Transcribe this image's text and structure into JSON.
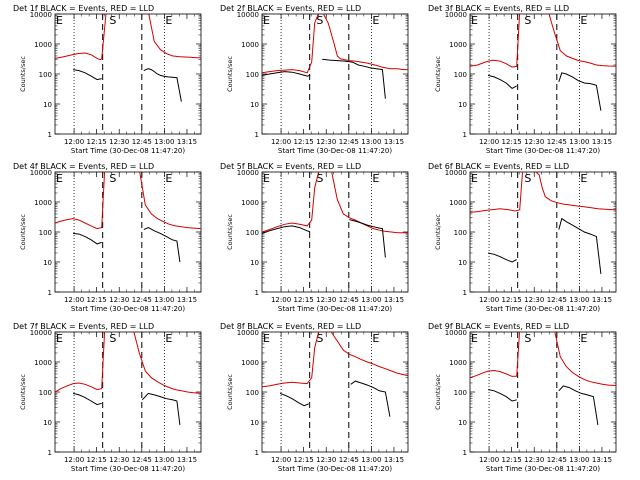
{
  "chart_data": {
    "type": "line",
    "y_scale": "log",
    "ylim": [
      1,
      10000
    ],
    "y_ticks": [
      1,
      10,
      100,
      1000,
      10000
    ],
    "y_tick_labels": [
      "1",
      "10",
      "100",
      "1000",
      "10000"
    ],
    "x_unit": "minutes after 11:47:20",
    "xlim": [
      0,
      97
    ],
    "x_ticks": [
      12.67,
      27.67,
      42.67,
      57.67,
      72.67,
      87.67
    ],
    "x_tick_labels": [
      "12:00",
      "12:15",
      "12:30",
      "12:45",
      "13:00",
      "13:15"
    ],
    "ylabel": "Counts/sec",
    "xlabel": "Start Time (30-Dec-08 11:47:20)",
    "grid": false,
    "dotted_lines_x": [
      12.67,
      72.67
    ],
    "dashed_lines_x": [
      31.67,
      57.67
    ],
    "markers": [
      {
        "label": "E",
        "x": 0
      },
      {
        "label": "S",
        "x": 35.5
      },
      {
        "label": "E",
        "x": 72.67
      }
    ],
    "series_colors": {
      "events": "#000000",
      "lld": "#d40000"
    },
    "panels": [
      {
        "title": "Det 1f BLACK = Events, RED = LLD",
        "lld": {
          "x": [
            0,
            5,
            10,
            15,
            20,
            24,
            28,
            30,
            31,
            34,
            38,
            42,
            46,
            50,
            54,
            58,
            62,
            66,
            70,
            74,
            78,
            82,
            86,
            90,
            94,
            97
          ],
          "y": [
            330,
            370,
            420,
            480,
            500,
            440,
            330,
            300,
            320,
            12000,
            12000,
            12000,
            12000,
            12000,
            12000,
            12000,
            12000,
            1200,
            650,
            480,
            400,
            380,
            370,
            360,
            350,
            350
          ]
        },
        "events": [
          {
            "x": [
              12,
              16,
              20,
              24,
              28,
              31
            ],
            "y": [
              140,
              130,
              110,
              85,
              65,
              70
            ]
          },
          {
            "x": [
              59,
              62,
              64,
              66,
              68,
              70,
              72,
              75,
              78,
              81,
              84
            ],
            "y": [
              130,
              150,
              140,
              120,
              100,
              90,
              85,
              80,
              78,
              75,
              12
            ]
          }
        ]
      },
      {
        "title": "Det 2f BLACK = Events, RED = LLD",
        "lld": {
          "x": [
            0,
            5,
            10,
            15,
            20,
            25,
            30,
            33,
            35,
            38,
            40,
            44,
            48,
            50,
            52,
            55,
            58,
            62,
            66,
            70,
            75,
            80,
            85,
            90,
            94,
            97
          ],
          "y": [
            110,
            120,
            130,
            135,
            140,
            130,
            110,
            250,
            5000,
            12000,
            12000,
            5000,
            1000,
            400,
            320,
            300,
            280,
            270,
            250,
            230,
            200,
            170,
            150,
            150,
            140,
            140
          ]
        },
        "events": [
          {
            "x": [
              0,
              5,
              10,
              15,
              20,
              25,
              30,
              32
            ],
            "y": [
              90,
              100,
              110,
              120,
              115,
              100,
              85,
              90
            ]
          },
          {
            "x": [
              40,
              45,
              50,
              55,
              60,
              64,
              68,
              72,
              76,
              80,
              82
            ],
            "y": [
              310,
              290,
              280,
              270,
              250,
              200,
              180,
              160,
              150,
              140,
              15
            ]
          }
        ]
      },
      {
        "title": "Det 3f BLACK = Events, RED = LLD",
        "lld": {
          "x": [
            0,
            5,
            10,
            15,
            20,
            24,
            28,
            31,
            33,
            36,
            40,
            44,
            48,
            52,
            56,
            60,
            64,
            68,
            72,
            76,
            80,
            84,
            88,
            92,
            97
          ],
          "y": [
            180,
            200,
            250,
            290,
            270,
            220,
            170,
            180,
            12000,
            12000,
            12000,
            12000,
            12000,
            12000,
            2500,
            600,
            400,
            330,
            280,
            260,
            230,
            200,
            190,
            185,
            180
          ]
        },
        "events": [
          {
            "x": [
              12,
              16,
              20,
              24,
              28,
              31
            ],
            "y": [
              90,
              80,
              65,
              50,
              33,
              40
            ]
          },
          {
            "x": [
              59,
              61,
              64,
              68,
              72,
              76,
              80,
              84,
              87
            ],
            "y": [
              55,
              110,
              100,
              80,
              60,
              50,
              48,
              42,
              6
            ]
          }
        ]
      },
      {
        "title": "Det 4f BLACK = Events, RED = LLD",
        "lld": {
          "x": [
            0,
            4,
            8,
            12,
            16,
            20,
            24,
            28,
            31,
            33,
            36,
            40,
            44,
            48,
            52,
            56,
            60,
            64,
            68,
            72,
            76,
            80,
            84,
            88,
            92,
            97
          ],
          "y": [
            200,
            230,
            260,
            280,
            250,
            200,
            160,
            130,
            140,
            12000,
            12000,
            12000,
            12000,
            12000,
            12000,
            12000,
            800,
            400,
            280,
            220,
            180,
            160,
            150,
            140,
            135,
            130
          ]
        },
        "events": [
          {
            "x": [
              12,
              16,
              20,
              24,
              28,
              31
            ],
            "y": [
              90,
              85,
              70,
              55,
              40,
              45
            ]
          },
          {
            "x": [
              59,
              62,
              66,
              70,
              74,
              78,
              81,
              83
            ],
            "y": [
              120,
              140,
              110,
              90,
              70,
              55,
              50,
              10
            ]
          }
        ]
      },
      {
        "title": "Det 5f BLACK = Events, RED = LLD",
        "lld": {
          "x": [
            0,
            5,
            10,
            15,
            20,
            25,
            30,
            33,
            35,
            38,
            42,
            46,
            50,
            54,
            58,
            62,
            66,
            70,
            74,
            78,
            82,
            86,
            90,
            94,
            97
          ],
          "y": [
            100,
            120,
            150,
            180,
            200,
            180,
            160,
            250,
            3000,
            12000,
            12000,
            12000,
            1200,
            400,
            300,
            250,
            200,
            160,
            130,
            115,
            105,
            100,
            95,
            95,
            95
          ]
        },
        "events": [
          {
            "x": [
              0,
              5,
              10,
              15,
              20,
              25,
              30,
              32
            ],
            "y": [
              90,
              110,
              130,
              150,
              160,
              140,
              110,
              100
            ]
          },
          {
            "x": [
              58,
              62,
              66,
              70,
              74,
              78,
              80,
              82
            ],
            "y": [
              260,
              230,
              200,
              170,
              150,
              135,
              130,
              14
            ]
          }
        ]
      },
      {
        "title": "Det 6f BLACK = Events, RED = LLD",
        "lld": {
          "x": [
            0,
            5,
            10,
            15,
            20,
            25,
            30,
            33,
            35,
            38,
            42,
            46,
            48,
            50,
            54,
            58,
            62,
            66,
            70,
            75,
            80,
            85,
            90,
            94,
            97
          ],
          "y": [
            450,
            480,
            520,
            560,
            600,
            560,
            500,
            550,
            12000,
            12000,
            12000,
            8000,
            3000,
            1500,
            1100,
            950,
            850,
            800,
            750,
            700,
            650,
            600,
            570,
            560,
            550
          ]
        },
        "events": [
          {
            "x": [
              12,
              16,
              20,
              24,
              28,
              31
            ],
            "y": [
              20,
              18,
              15,
              12,
              10,
              12
            ]
          },
          {
            "x": [
              59,
              61,
              64,
              68,
              72,
              76,
              80,
              84,
              87
            ],
            "y": [
              120,
              280,
              220,
              170,
              130,
              100,
              85,
              70,
              4
            ]
          }
        ]
      },
      {
        "title": "Det 7f BLACK = Events, RED = LLD",
        "lld": {
          "x": [
            0,
            4,
            8,
            12,
            16,
            20,
            24,
            28,
            31,
            33,
            36,
            40,
            44,
            48,
            52,
            56,
            60,
            64,
            68,
            72,
            76,
            80,
            84,
            88,
            92,
            97
          ],
          "y": [
            100,
            130,
            160,
            190,
            200,
            180,
            150,
            120,
            130,
            12000,
            12000,
            12000,
            12000,
            12000,
            12000,
            2000,
            500,
            300,
            220,
            170,
            140,
            120,
            110,
            100,
            95,
            90
          ]
        },
        "events": [
          {
            "x": [
              12,
              16,
              20,
              24,
              28,
              31
            ],
            "y": [
              90,
              80,
              65,
              50,
              38,
              42
            ]
          },
          {
            "x": [
              58,
              62,
              66,
              70,
              74,
              78,
              81,
              83
            ],
            "y": [
              55,
              90,
              80,
              70,
              60,
              55,
              50,
              8
            ]
          }
        ]
      },
      {
        "title": "Det 8f BLACK = Events, RED = LLD",
        "lld": {
          "x": [
            0,
            5,
            10,
            15,
            20,
            25,
            30,
            33,
            35,
            38,
            42,
            46,
            50,
            54,
            58,
            62,
            66,
            70,
            74,
            78,
            82,
            86,
            90,
            94,
            97
          ],
          "y": [
            150,
            160,
            180,
            200,
            210,
            200,
            190,
            300,
            3000,
            12000,
            12000,
            10000,
            5000,
            2500,
            1800,
            1500,
            1200,
            1000,
            850,
            700,
            600,
            500,
            420,
            380,
            350
          ]
        },
        "events": [
          {
            "x": [
              12,
              16,
              20,
              24,
              28,
              31
            ],
            "y": [
              90,
              75,
              60,
              45,
              35,
              40
            ]
          },
          {
            "x": [
              59,
              62,
              66,
              70,
              74,
              78,
              82,
              85
            ],
            "y": [
              180,
              230,
              200,
              170,
              140,
              110,
              100,
              15
            ]
          }
        ]
      },
      {
        "title": "Det 9f BLACK = Events, RED = LLD",
        "lld": {
          "x": [
            0,
            4,
            8,
            12,
            16,
            20,
            24,
            28,
            31,
            33,
            36,
            40,
            44,
            48,
            52,
            56,
            60,
            64,
            68,
            72,
            76,
            80,
            84,
            88,
            92,
            97
          ],
          "y": [
            300,
            350,
            420,
            500,
            520,
            480,
            400,
            330,
            340,
            12000,
            12000,
            12000,
            12000,
            12000,
            12000,
            12000,
            1500,
            700,
            450,
            330,
            260,
            220,
            200,
            180,
            170,
            165
          ]
        },
        "events": [
          {
            "x": [
              12,
              16,
              20,
              24,
              28,
              31
            ],
            "y": [
              120,
              110,
              90,
              70,
              50,
              55
            ]
          },
          {
            "x": [
              59,
              62,
              66,
              70,
              74,
              78,
              82,
              85
            ],
            "y": [
              110,
              160,
              140,
              110,
              90,
              80,
              70,
              8
            ]
          }
        ]
      }
    ]
  }
}
